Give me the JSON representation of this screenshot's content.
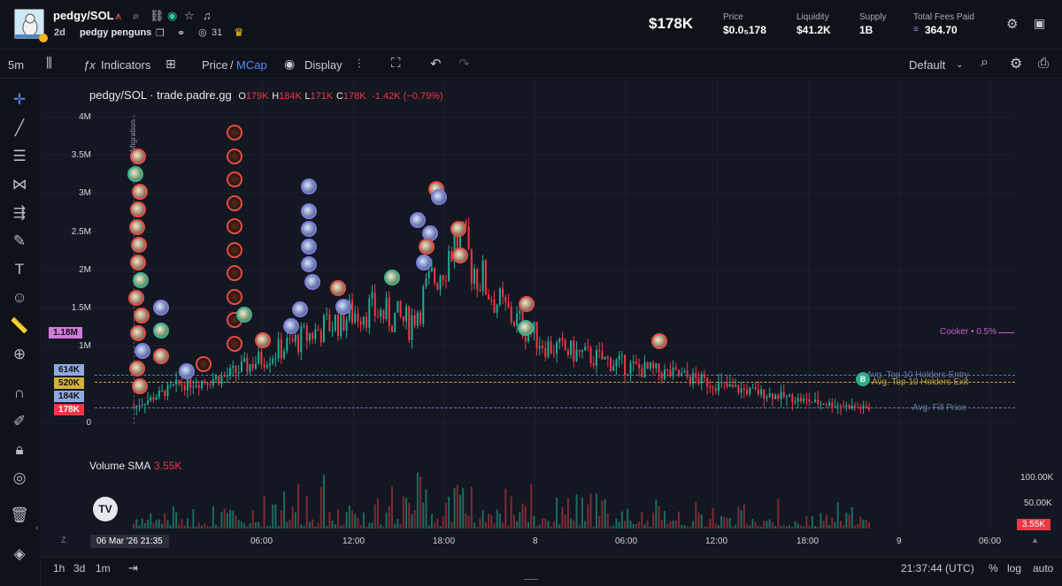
{
  "header": {
    "pair": "pedgy/SOL",
    "age": "2d",
    "project_name": "pedgy penguns",
    "viewers": "31",
    "market_cap": "$178K",
    "stats": [
      {
        "label": "Price",
        "value": "$0.0₅178"
      },
      {
        "label": "Liquidity",
        "value": "$41.2K"
      },
      {
        "label": "Supply",
        "value": "1B"
      },
      {
        "label": "Total Fees Paid",
        "value": "364.70"
      }
    ]
  },
  "toolbar": {
    "interval": "5m",
    "indicators": "Indicators",
    "price_label": "Price",
    "slash": "/",
    "mcap_label": "MCap",
    "display": "Display",
    "layout": "Default"
  },
  "legend": {
    "symbol": "pedgy/SOL · trade.padre.gg",
    "o_label": "O",
    "o": "179K",
    "h_label": "H",
    "h": "184K",
    "l_label": "L",
    "l": "171K",
    "c_label": "C",
    "c": "178K",
    "change": "-1.42K (−0.79%)"
  },
  "migration_label": "Migration",
  "price_tags": [
    {
      "text": "1.18M",
      "color": "#d17bd9"
    },
    {
      "text": "614K",
      "color": "#8fa8e0"
    },
    {
      "text": "520K",
      "color": "#d4b03a"
    },
    {
      "text": "184K",
      "color": "#8fa8e0"
    },
    {
      "text": "178K",
      "color": "#f23645"
    }
  ],
  "overlay_lines": {
    "cooker": "Cooker • 0.5%",
    "top10_entry": "Avg. Top 10 Holders Entry",
    "top10_exit": "Avg. Top 10 Holders Exit",
    "fill_price": "Avg. Fill Price",
    "b_marker": "B"
  },
  "volume": {
    "label": "Volume SMA",
    "value": "3.55K",
    "axis": [
      "100.00K",
      "50.00K"
    ],
    "current": "3.55K"
  },
  "chart_data": {
    "type": "line",
    "y_ticks": [
      "4M",
      "3.5M",
      "3M",
      "2.5M",
      "2M",
      "1.5M",
      "1M",
      "0"
    ],
    "x_ticks": [
      "06 Mar '26  21:35",
      "06:00",
      "12:00",
      "18:00",
      "8",
      "06:00",
      "12:00",
      "18:00",
      "9",
      "06:00"
    ],
    "x": [
      "21:35",
      "00:00",
      "03:00",
      "06:00",
      "09:00",
      "12:00",
      "15:00",
      "18:00",
      "21:00",
      "8 00:00",
      "03:00",
      "06:00",
      "09:00",
      "12:00",
      "15:00",
      "18:00",
      "21:00"
    ],
    "values": [
      0.2,
      0.5,
      0.6,
      0.9,
      1.2,
      1.5,
      1.3,
      2.4,
      1.5,
      1.0,
      0.85,
      0.7,
      0.6,
      0.45,
      0.35,
      0.25,
      0.18
    ],
    "ylim": [
      0,
      4.2
    ]
  },
  "bottom": {
    "tf1": "1h",
    "tf2": "3d",
    "tf3": "1m",
    "clock": "21:37:44 (UTC)",
    "pct": "%",
    "log": "log",
    "auto": "auto"
  }
}
